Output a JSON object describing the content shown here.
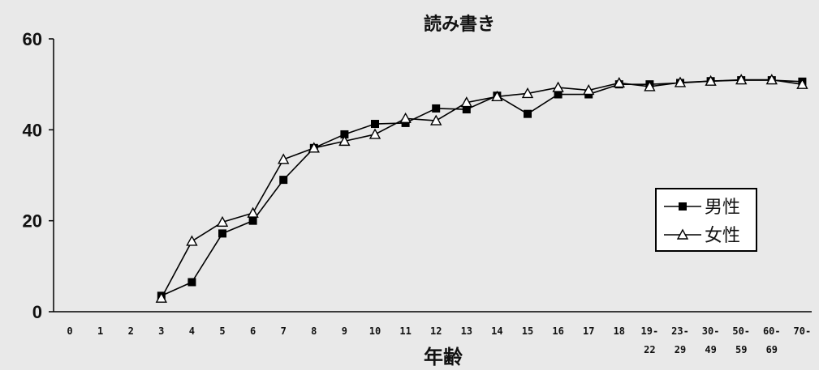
{
  "chart_data": {
    "type": "line",
    "title": "読み書き",
    "xlabel": "年齢",
    "ylabel": "",
    "ylim": [
      0,
      60
    ],
    "yticks": [
      "0",
      "20",
      "40",
      "60"
    ],
    "categories": [
      [
        "0"
      ],
      [
        "1"
      ],
      [
        "2"
      ],
      [
        "3"
      ],
      [
        "4"
      ],
      [
        "5"
      ],
      [
        "6"
      ],
      [
        "7"
      ],
      [
        "8"
      ],
      [
        "9"
      ],
      [
        "10"
      ],
      [
        "11"
      ],
      [
        "12"
      ],
      [
        "13"
      ],
      [
        "14"
      ],
      [
        "15"
      ],
      [
        "16"
      ],
      [
        "17"
      ],
      [
        "18"
      ],
      [
        "19-",
        "22"
      ],
      [
        "23-",
        "29"
      ],
      [
        "30-",
        "49"
      ],
      [
        "50-",
        "59"
      ],
      [
        "60-",
        "69"
      ],
      [
        "70-"
      ]
    ],
    "grid": false,
    "legend_position": "right",
    "series": [
      {
        "name": "男性",
        "marker": "filled-square",
        "color": "#000000",
        "values": [
          null,
          null,
          null,
          3.5,
          6.5,
          17.2,
          20.0,
          29.0,
          36.0,
          39.0,
          41.3,
          41.5,
          44.7,
          44.5,
          47.5,
          43.5,
          47.8,
          47.8,
          50.0,
          50.0,
          50.3,
          50.7,
          50.9,
          50.9,
          50.6
        ]
      },
      {
        "name": "女性",
        "marker": "open-triangle",
        "color": "#000000",
        "values": [
          null,
          null,
          null,
          3.0,
          15.5,
          19.7,
          21.7,
          33.5,
          36.0,
          37.5,
          39.0,
          42.5,
          42.0,
          46.0,
          47.3,
          48.0,
          49.3,
          48.7,
          50.3,
          49.5,
          50.4,
          50.7,
          51.0,
          51.0,
          50.0
        ]
      }
    ]
  }
}
